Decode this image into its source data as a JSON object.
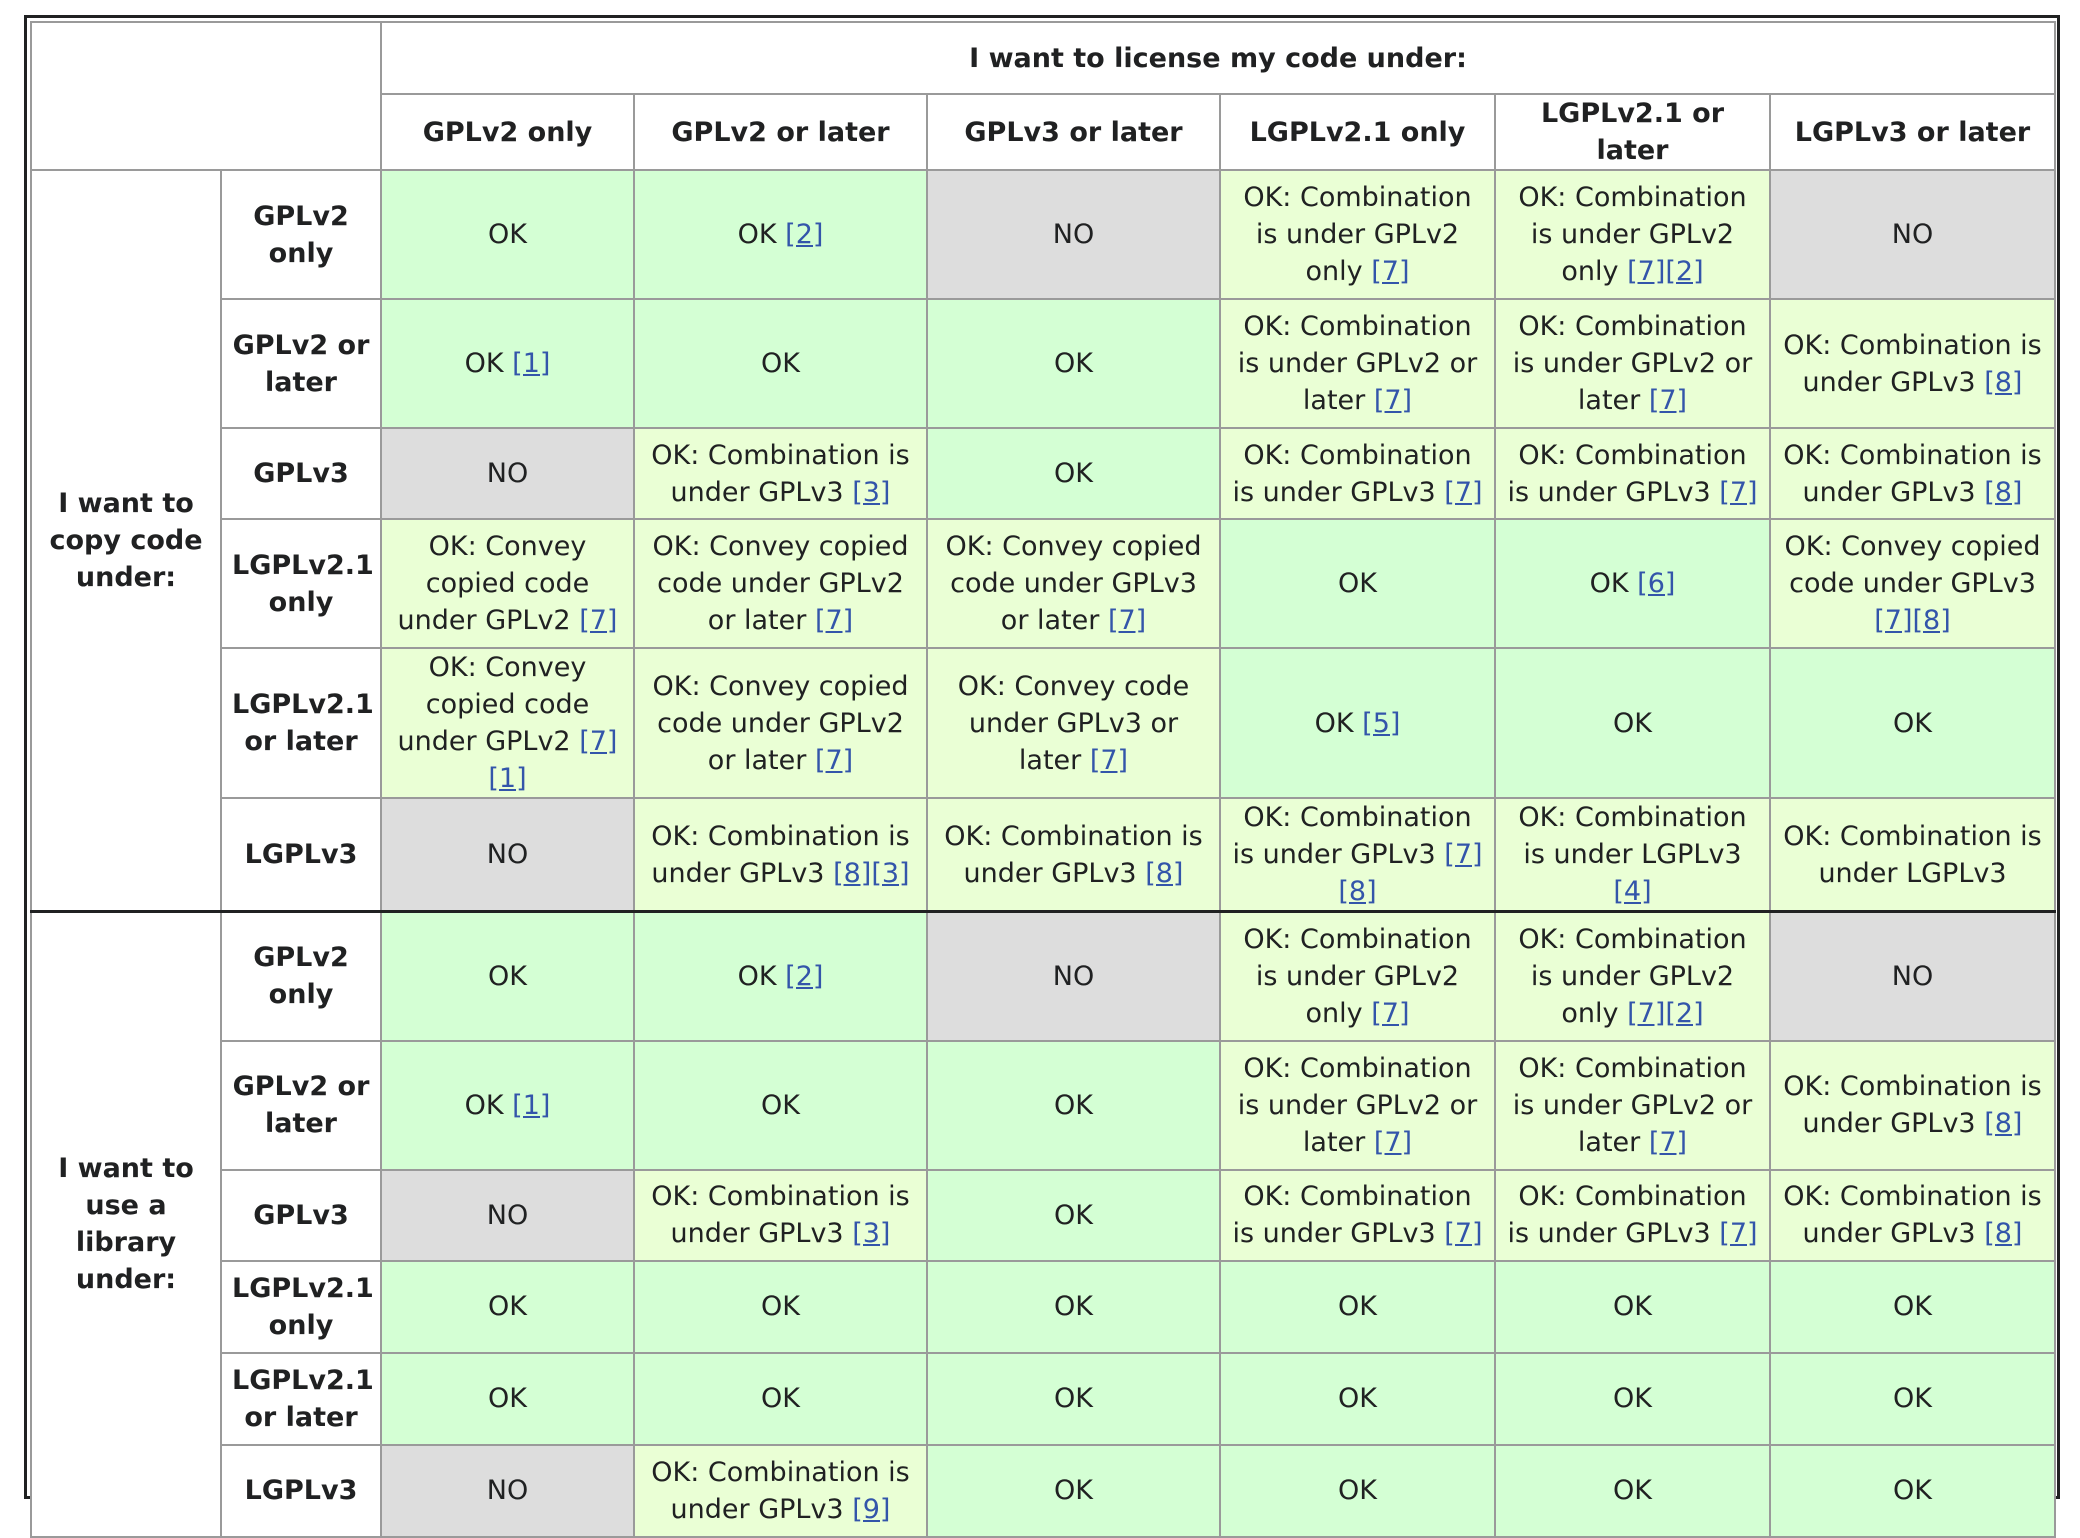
{
  "title": "I want to license my code under:",
  "columns": [
    "GPLv2 only",
    "GPLv2 or later",
    "GPLv3 or later",
    "LGPLv2.1 only",
    "LGPLv2.1 or later",
    "LGPLv3 or later"
  ],
  "row_labels": [
    "GPLv2 only",
    "GPLv2 or later",
    "GPLv3",
    "LGPLv2.1 only",
    "LGPLv2.1 or later",
    "LGPLv3"
  ],
  "groups": [
    {
      "label": "I want to copy code under:",
      "rows": [
        [
          {
            "text": "OK",
            "refs": [],
            "status": "ok"
          },
          {
            "text": "OK",
            "refs": [
              "[2]"
            ],
            "status": "ok"
          },
          {
            "text": "NO",
            "refs": [],
            "status": "no"
          },
          {
            "text": "OK: Combination is under GPLv2 only",
            "refs": [
              "[7]"
            ],
            "status": "partial"
          },
          {
            "text": "OK: Combination is under GPLv2 only",
            "refs": [
              "[7]",
              "[2]"
            ],
            "status": "partial"
          },
          {
            "text": "NO",
            "refs": [],
            "status": "no"
          }
        ],
        [
          {
            "text": "OK",
            "refs": [
              "[1]"
            ],
            "status": "ok"
          },
          {
            "text": "OK",
            "refs": [],
            "status": "ok"
          },
          {
            "text": "OK",
            "refs": [],
            "status": "ok"
          },
          {
            "text": "OK: Combination is under GPLv2 or later",
            "refs": [
              "[7]"
            ],
            "status": "partial"
          },
          {
            "text": "OK: Combination is under GPLv2 or later",
            "refs": [
              "[7]"
            ],
            "status": "partial"
          },
          {
            "text": "OK: Combination is under GPLv3",
            "refs": [
              "[8]"
            ],
            "status": "partial"
          }
        ],
        [
          {
            "text": "NO",
            "refs": [],
            "status": "no"
          },
          {
            "text": "OK: Combination is under GPLv3",
            "refs": [
              "[3]"
            ],
            "status": "partial"
          },
          {
            "text": "OK",
            "refs": [],
            "status": "ok"
          },
          {
            "text": "OK: Combination is under GPLv3",
            "refs": [
              "[7]"
            ],
            "status": "partial"
          },
          {
            "text": "OK: Combination is under GPLv3",
            "refs": [
              "[7]"
            ],
            "status": "partial"
          },
          {
            "text": "OK: Combination is under GPLv3",
            "refs": [
              "[8]"
            ],
            "status": "partial"
          }
        ],
        [
          {
            "text": "OK: Convey copied code under GPLv2",
            "refs": [
              "[7]"
            ],
            "status": "partial"
          },
          {
            "text": "OK: Convey copied code under GPLv2 or later",
            "refs": [
              "[7]"
            ],
            "status": "partial"
          },
          {
            "text": "OK: Convey copied code under GPLv3 or later",
            "refs": [
              "[7]"
            ],
            "status": "partial"
          },
          {
            "text": "OK",
            "refs": [],
            "status": "ok"
          },
          {
            "text": "OK",
            "refs": [
              "[6]"
            ],
            "status": "ok"
          },
          {
            "text": "OK: Convey copied code under GPLv3",
            "refs": [
              "[7]",
              "[8]"
            ],
            "status": "partial"
          }
        ],
        [
          {
            "text": "OK: Convey copied code under GPLv2",
            "refs": [
              "[7]",
              "[1]"
            ],
            "status": "partial"
          },
          {
            "text": "OK: Convey copied code under GPLv2 or later",
            "refs": [
              "[7]"
            ],
            "status": "partial"
          },
          {
            "text": "OK: Convey code under GPLv3 or later",
            "refs": [
              "[7]"
            ],
            "status": "partial"
          },
          {
            "text": "OK",
            "refs": [
              "[5]"
            ],
            "status": "ok"
          },
          {
            "text": "OK",
            "refs": [],
            "status": "ok"
          },
          {
            "text": "OK",
            "refs": [],
            "status": "ok"
          }
        ],
        [
          {
            "text": "NO",
            "refs": [],
            "status": "no"
          },
          {
            "text": "OK: Combination is under GPLv3",
            "refs": [
              "[8]",
              "[3]"
            ],
            "status": "partial"
          },
          {
            "text": "OK: Combination is under GPLv3",
            "refs": [
              "[8]"
            ],
            "status": "partial"
          },
          {
            "text": "OK: Combination is under GPLv3",
            "refs": [
              "[7]",
              "[8]"
            ],
            "status": "partial"
          },
          {
            "text": "OK: Combination is under LGPLv3",
            "refs": [
              "[4]"
            ],
            "status": "partial"
          },
          {
            "text": "OK: Combination is under LGPLv3",
            "refs": [],
            "status": "partial"
          }
        ]
      ]
    },
    {
      "label": "I want to use a library under:",
      "rows": [
        [
          {
            "text": "OK",
            "refs": [],
            "status": "ok"
          },
          {
            "text": "OK",
            "refs": [
              "[2]"
            ],
            "status": "ok"
          },
          {
            "text": "NO",
            "refs": [],
            "status": "no"
          },
          {
            "text": "OK: Combination is under GPLv2 only",
            "refs": [
              "[7]"
            ],
            "status": "partial"
          },
          {
            "text": "OK: Combination is under GPLv2 only",
            "refs": [
              "[7]",
              "[2]"
            ],
            "status": "partial"
          },
          {
            "text": "NO",
            "refs": [],
            "status": "no"
          }
        ],
        [
          {
            "text": "OK",
            "refs": [
              "[1]"
            ],
            "status": "ok"
          },
          {
            "text": "OK",
            "refs": [],
            "status": "ok"
          },
          {
            "text": "OK",
            "refs": [],
            "status": "ok"
          },
          {
            "text": "OK: Combination is under GPLv2 or later",
            "refs": [
              "[7]"
            ],
            "status": "partial"
          },
          {
            "text": "OK: Combination is under GPLv2 or later",
            "refs": [
              "[7]"
            ],
            "status": "partial"
          },
          {
            "text": "OK: Combination is under GPLv3",
            "refs": [
              "[8]"
            ],
            "status": "partial"
          }
        ],
        [
          {
            "text": "NO",
            "refs": [],
            "status": "no"
          },
          {
            "text": "OK: Combination is under GPLv3",
            "refs": [
              "[3]"
            ],
            "status": "partial"
          },
          {
            "text": "OK",
            "refs": [],
            "status": "ok"
          },
          {
            "text": "OK: Combination is under GPLv3",
            "refs": [
              "[7]"
            ],
            "status": "partial"
          },
          {
            "text": "OK: Combination is under GPLv3",
            "refs": [
              "[7]"
            ],
            "status": "partial"
          },
          {
            "text": "OK: Combination is under GPLv3",
            "refs": [
              "[8]"
            ],
            "status": "partial"
          }
        ],
        [
          {
            "text": "OK",
            "refs": [],
            "status": "ok"
          },
          {
            "text": "OK",
            "refs": [],
            "status": "ok"
          },
          {
            "text": "OK",
            "refs": [],
            "status": "ok"
          },
          {
            "text": "OK",
            "refs": [],
            "status": "ok"
          },
          {
            "text": "OK",
            "refs": [],
            "status": "ok"
          },
          {
            "text": "OK",
            "refs": [],
            "status": "ok"
          }
        ],
        [
          {
            "text": "OK",
            "refs": [],
            "status": "ok"
          },
          {
            "text": "OK",
            "refs": [],
            "status": "ok"
          },
          {
            "text": "OK",
            "refs": [],
            "status": "ok"
          },
          {
            "text": "OK",
            "refs": [],
            "status": "ok"
          },
          {
            "text": "OK",
            "refs": [],
            "status": "ok"
          },
          {
            "text": "OK",
            "refs": [],
            "status": "ok"
          }
        ],
        [
          {
            "text": "NO",
            "refs": [],
            "status": "no"
          },
          {
            "text": "OK: Combination is under GPLv3",
            "refs": [
              "[9]"
            ],
            "status": "partial"
          },
          {
            "text": "OK",
            "refs": [],
            "status": "ok"
          },
          {
            "text": "OK",
            "refs": [],
            "status": "ok"
          },
          {
            "text": "OK",
            "refs": [],
            "status": "ok"
          },
          {
            "text": "OK",
            "refs": [],
            "status": "ok"
          }
        ]
      ]
    }
  ],
  "colors": {
    "ok": "#d4ffd4",
    "partial": "#eaffd5",
    "no": "#dddddd",
    "link": "#3355aa",
    "border": "#9a9a9a"
  }
}
